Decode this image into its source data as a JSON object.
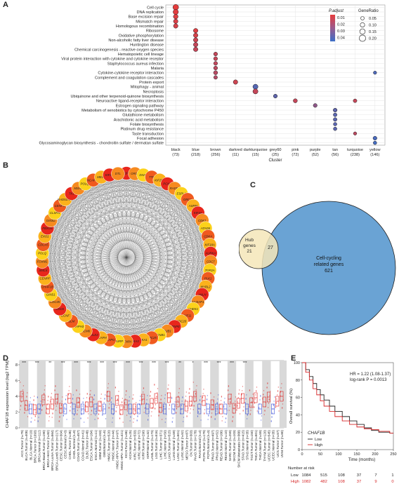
{
  "panels": {
    "a": {
      "letter": "A",
      "xlabel": "Cluster",
      "legend": {
        "padjust_title": "P.adjust",
        "padjust_ticks": [
          "0.01",
          "0.02",
          "0.03",
          "0.04"
        ],
        "generatio_title": "GeneRatio",
        "generatio_ticks": [
          "0.05",
          "0.10",
          "0.15",
          "0.20"
        ]
      },
      "terms": [
        "Cell cycle",
        "DNA replication",
        "Base excision repair",
        "Mismatch repair",
        "Homologous recombination",
        "Ribosome",
        "Oxidative phosphorylation",
        "Non-alcoholic fatty liver disease",
        "Huntington disease",
        "Chemical carcinogenesis - reactive oxygen species",
        "Hematopoietic cell lineage",
        "Viral protein interaction with cytokine and cytokine receptor",
        "Staphylococcus aureus infection",
        "Malaria",
        "Cytokine-cytokine receptor interaction",
        "Complement and coagulation cascades",
        "Protein export",
        "Mitophagy - animal",
        "Necroptosis",
        "Ubiquinone and other terpenoid-quinone biosynthesis",
        "Neuroactive ligand-receptor interaction",
        "Estrogen signaling pathway",
        "Metabolism of xenobiotics by cytochrome P450",
        "Glutathione metabolism",
        "Arachidonic acid metabolism",
        "Folate biosynthesis",
        "Platinum drug resistance",
        "Taste transduction",
        "Focal adhesion",
        "Glycosaminoglycan biosynthesis - chondroitin sulfate / dermatan sulfate"
      ],
      "clusters": [
        {
          "name": "black",
          "n": "(73)"
        },
        {
          "name": "blue",
          "n": "(218)"
        },
        {
          "name": "brown",
          "n": "(256)"
        },
        {
          "name": "darkred",
          "n": "(11)"
        },
        {
          "name": "darkturquoise",
          "n": "(15)"
        },
        {
          "name": "grey60",
          "n": "(25)"
        },
        {
          "name": "pink",
          "n": "(72)"
        },
        {
          "name": "purple",
          "n": "(52)"
        },
        {
          "name": "tan",
          "n": "(56)"
        },
        {
          "name": "turquoise",
          "n": "(238)"
        },
        {
          "name": "yellow",
          "n": "(146)"
        }
      ],
      "dots": [
        {
          "term": 0,
          "cluster": 0,
          "ratio": 0.16,
          "padj": 0.004
        },
        {
          "term": 1,
          "cluster": 0,
          "ratio": 0.14,
          "padj": 0.005
        },
        {
          "term": 2,
          "cluster": 0,
          "ratio": 0.11,
          "padj": 0.006
        },
        {
          "term": 3,
          "cluster": 0,
          "ratio": 0.1,
          "padj": 0.007
        },
        {
          "term": 4,
          "cluster": 0,
          "ratio": 0.1,
          "padj": 0.008
        },
        {
          "term": 5,
          "cluster": 1,
          "ratio": 0.1,
          "padj": 0.006
        },
        {
          "term": 6,
          "cluster": 1,
          "ratio": 0.1,
          "padj": 0.008
        },
        {
          "term": 7,
          "cluster": 1,
          "ratio": 0.1,
          "padj": 0.01
        },
        {
          "term": 8,
          "cluster": 1,
          "ratio": 0.1,
          "padj": 0.012
        },
        {
          "term": 9,
          "cluster": 1,
          "ratio": 0.1,
          "padj": 0.012
        },
        {
          "term": 10,
          "cluster": 2,
          "ratio": 0.07,
          "padj": 0.012
        },
        {
          "term": 11,
          "cluster": 2,
          "ratio": 0.07,
          "padj": 0.012
        },
        {
          "term": 12,
          "cluster": 2,
          "ratio": 0.07,
          "padj": 0.013
        },
        {
          "term": 13,
          "cluster": 2,
          "ratio": 0.07,
          "padj": 0.014
        },
        {
          "term": 14,
          "cluster": 2,
          "ratio": 0.08,
          "padj": 0.015
        },
        {
          "term": 15,
          "cluster": 2,
          "ratio": 0.06,
          "padj": 0.016
        },
        {
          "term": 16,
          "cluster": 3,
          "ratio": 0.1,
          "padj": 0.01
        },
        {
          "term": 17,
          "cluster": 4,
          "ratio": 0.13,
          "padj": 0.038
        },
        {
          "term": 18,
          "cluster": 4,
          "ratio": 0.13,
          "padj": 0.012
        },
        {
          "term": 19,
          "cluster": 5,
          "ratio": 0.07,
          "padj": 0.036
        },
        {
          "term": 20,
          "cluster": 6,
          "ratio": 0.08,
          "padj": 0.012
        },
        {
          "term": 21,
          "cluster": 7,
          "ratio": 0.07,
          "padj": 0.025
        },
        {
          "term": 20,
          "cluster": 9,
          "ratio": 0.06,
          "padj": 0.012
        },
        {
          "term": 22,
          "cluster": 8,
          "ratio": 0.07,
          "padj": 0.036
        },
        {
          "term": 23,
          "cluster": 8,
          "ratio": 0.06,
          "padj": 0.037
        },
        {
          "term": 24,
          "cluster": 8,
          "ratio": 0.06,
          "padj": 0.037
        },
        {
          "term": 25,
          "cluster": 8,
          "ratio": 0.05,
          "padj": 0.037
        },
        {
          "term": 26,
          "cluster": 8,
          "ratio": 0.05,
          "padj": 0.037
        },
        {
          "term": 27,
          "cluster": 9,
          "ratio": 0.04,
          "padj": 0.014
        },
        {
          "term": 14,
          "cluster": 10,
          "ratio": 0.04,
          "padj": 0.04
        },
        {
          "term": 28,
          "cluster": 10,
          "ratio": 0.07,
          "padj": 0.041
        },
        {
          "term": 29,
          "cluster": 10,
          "ratio": 0.05,
          "padj": 0.042
        }
      ]
    },
    "b": {
      "letter": "B",
      "genes": [
        "E2F8",
        "ORC6",
        "DNA2",
        "TTK",
        "KIF20B",
        "PCNA",
        "RAD51",
        "ESPL1",
        "ORC1",
        "ASPM",
        "KIF4A",
        "CDK1",
        "ATAD5",
        "CDKA",
        "KIF18A",
        "AURKA",
        "CDC7",
        "TOP2A",
        "PLK1",
        "MYBL2",
        "ANLN",
        "NUSAP1",
        "CHEK1",
        "KIF11",
        "CDC20",
        "CENPE",
        "BUB1",
        "CCNB1",
        "SPC25",
        "SKA1",
        "SKA3",
        "CENPA",
        "HJURP",
        "NCAPG",
        "NCAPH",
        "POLE2",
        "MCM6",
        "DIAPH3",
        "BLM",
        "CCNF",
        "CDC6",
        "CDC45",
        "GINS1",
        "CHAF1B",
        "CENPF",
        "SMC4",
        "FOXM1",
        "POLQ",
        "CDCA5",
        "EXO1",
        "FBXO5",
        "GINS2",
        "CLSPN",
        "CENPU",
        "RAD51AP1",
        "TK1",
        "MSH2",
        "POLQ2",
        "NCAPG2",
        "MELK",
        "KIF2C",
        "DTL"
      ]
    },
    "c": {
      "letter": "C",
      "hub_label_line1": "Hub",
      "hub_label_line2": "genes",
      "hub_only": "21",
      "overlap": "27",
      "cell_label_line1": "Cell-cycling",
      "cell_label_line2": "related genes",
      "cell_only": "621",
      "colors": {
        "hub": "#f4e6b8",
        "cell": "#6aa3d4"
      }
    },
    "d": {
      "letter": "D",
      "ylabel": "CHAF1B expression level (log2 TPM)",
      "yticks": [
        "0",
        "2",
        "4",
        "6",
        "8"
      ],
      "significance": [
        "***",
        "***",
        "**",
        "***",
        "***",
        "***",
        "***",
        "***",
        "***",
        "***",
        "***",
        "***",
        "**",
        "*",
        "***",
        "***",
        "***",
        "***"
      ],
      "categories": [
        "ACC.Tumor (n=79)",
        "BLCA.Tumor (n=408)",
        "BLCA.Normal (n=19)",
        "BRCA.Tumor (n=1093)",
        "BRCA.Normal (n=112)",
        "BRCA-Basal.Tumor (n=190)",
        "BRCA-Her2.Tumor (n=82)",
        "BRCA-LumA.Tumor (n=564)",
        "BRCA-LumB.Tumor (n=217)",
        "CESC.Tumor (n=304)",
        "CESC.Normal (n=3)",
        "CHOL.Tumor (n=36)",
        "CHOL.Normal (n=9)",
        "COAD.Tumor (n=457)",
        "COAD.Normal (n=41)",
        "DLBC.Tumor (n=48)",
        "ESCA.Tumor (n=184)",
        "ESCA.Normal (n=11)",
        "GBM.Tumor (n=153)",
        "GBM.Normal (n=5)",
        "HNSC.Tumor (n=520)",
        "HNSC.Normal (n=44)",
        "HNSC-HPV+.Tumor (n=97)",
        "HNSC-HPV-.Tumor (n=421)",
        "KICH.Tumor (n=66)",
        "KICH.Normal (n=25)",
        "KIRC.Tumor (n=533)",
        "KIRC.Normal (n=72)",
        "KIRP.Tumor (n=290)",
        "KIRP.Normal (n=32)",
        "LAML.Tumor (n=173)",
        "LGG.Tumor (n=516)",
        "LIHC.Tumor (n=371)",
        "LIHC.Normal (n=50)",
        "LUAD.Tumor (n=515)",
        "LUAD.Normal (n=59)",
        "LUSC.Tumor (n=501)",
        "LUSC.Normal (n=52)",
        "MESO.Tumor (n=87)",
        "OV.Tumor (n=303)",
        "PAAD.Tumor (n=178)",
        "PAAD.Normal (n=4)",
        "PCPG.Tumor (n=179)",
        "PCPG.Normal (n=3)",
        "PRAD.Tumor (n=497)",
        "PRAD.Normal (n=52)",
        "READ.Tumor (n=166)",
        "READ.Normal (n=10)",
        "SARC.Tumor (n=259)",
        "SKCM.Tumor (n=103)",
        "SKCM.Metastasis (n=368)",
        "STAD.Tumor (n=415)",
        "STAD.Normal (n=35)",
        "TGCT.Tumor (n=150)",
        "THCA.Tumor (n=501)",
        "THCA.Normal (n=59)",
        "THYM.Tumor (n=120)",
        "UCEC.Tumor (n=545)",
        "UCEC.Normal (n=35)",
        "UCS.Tumor (n=57)",
        "UVM.Tumor (n=80)"
      ]
    },
    "e": {
      "letter": "E",
      "hr_text": "HR = 1.22 (1.08-1.37)",
      "logrank_text": "log-rank P = 0.0013",
      "ylabel": "Overall survival (%)",
      "xlabel": "Time (months)",
      "yticks": [
        "0",
        "20",
        "40",
        "60",
        "80",
        "100"
      ],
      "xticks": [
        "0",
        "50",
        "100",
        "150",
        "200",
        "250"
      ],
      "gene": "CHAF1B",
      "legend_low": "Low",
      "legend_high": "High",
      "risk_title": "Number at risk",
      "risk_low": [
        "Low",
        "1084",
        "515",
        "108",
        "37",
        "7",
        "1"
      ],
      "risk_high": [
        "High",
        "1082",
        "482",
        "108",
        "37",
        "9",
        "0"
      ],
      "colors": {
        "low": "#222222",
        "high": "#d62728"
      },
      "curves": {
        "low": [
          [
            0,
            100
          ],
          [
            10,
            92
          ],
          [
            20,
            84
          ],
          [
            30,
            76
          ],
          [
            40,
            69
          ],
          [
            50,
            63
          ],
          [
            60,
            57
          ],
          [
            75,
            50
          ],
          [
            90,
            44
          ],
          [
            110,
            38
          ],
          [
            130,
            33
          ],
          [
            150,
            29
          ],
          [
            170,
            25
          ],
          [
            190,
            22
          ],
          [
            210,
            20
          ],
          [
            240,
            19
          ],
          [
            250,
            19
          ]
        ],
        "high": [
          [
            0,
            100
          ],
          [
            10,
            89
          ],
          [
            20,
            80
          ],
          [
            30,
            70
          ],
          [
            40,
            63
          ],
          [
            50,
            56
          ],
          [
            60,
            50
          ],
          [
            75,
            44
          ],
          [
            90,
            38
          ],
          [
            110,
            33
          ],
          [
            130,
            29
          ],
          [
            150,
            26
          ],
          [
            170,
            24
          ],
          [
            190,
            23
          ],
          [
            210,
            21
          ],
          [
            240,
            19
          ],
          [
            250,
            19
          ]
        ]
      }
    }
  }
}
